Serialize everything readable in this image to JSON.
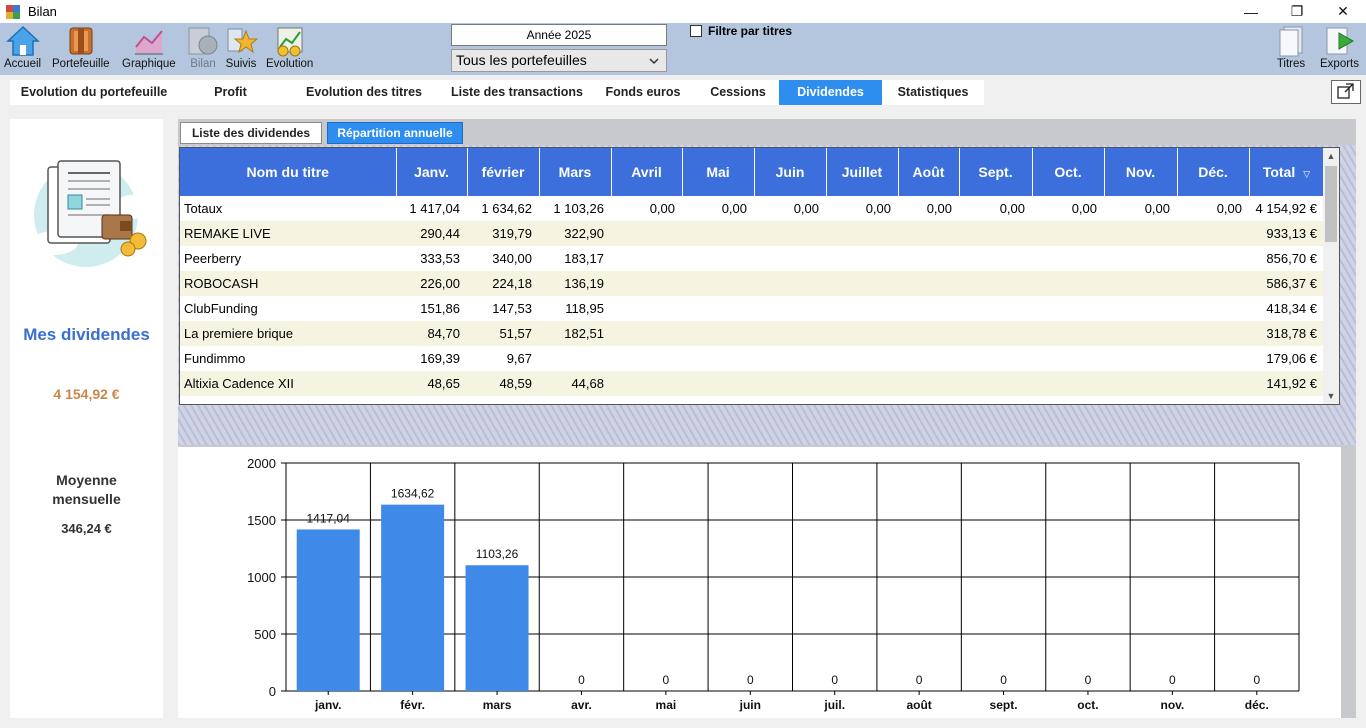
{
  "window": {
    "title": "Bilan",
    "minimize": "—",
    "maximize": "❐",
    "close": "✕"
  },
  "toolbar": {
    "buttons": [
      {
        "label": "Accueil"
      },
      {
        "label": "Portefeuille"
      },
      {
        "label": "Graphique"
      },
      {
        "label": "Bilan",
        "disabled": true
      },
      {
        "label": "Suivis"
      },
      {
        "label": "Evolution"
      },
      {
        "label": "Titres"
      },
      {
        "label": "Exports"
      }
    ],
    "year": "Année 2025",
    "portfolio_select": "Tous les portefeuilles",
    "filter_label": "Filtre par titres"
  },
  "tabs": [
    "Evolution du portefeuille",
    "Profit",
    "Evolution des titres",
    "Liste des transactions",
    "Fonds euros",
    "Cessions",
    "Dividendes",
    "Statistiques"
  ],
  "active_tab": "Dividendes",
  "subtabs": {
    "list": "Liste des dividendes",
    "annual": "Répartition annuelle"
  },
  "left": {
    "title": "Mes dividendes",
    "total": "4 154,92 €",
    "avg_label": "Moyenne mensuelle",
    "avg_value": "346,24 €"
  },
  "table": {
    "columns": [
      "Nom du titre",
      "Janv.",
      "février",
      "Mars",
      "Avril",
      "Mai",
      "Juin",
      "Juillet",
      "Août",
      "Sept.",
      "Oct.",
      "Nov.",
      "Déc.",
      "Total"
    ],
    "sort_indicator": "▽",
    "rows": [
      [
        "Totaux",
        "1 417,04",
        "1 634,62",
        "1 103,26",
        "0,00",
        "0,00",
        "0,00",
        "0,00",
        "0,00",
        "0,00",
        "0,00",
        "0,00",
        "0,00",
        "4 154,92 €"
      ],
      [
        "REMAKE LIVE",
        "290,44",
        "319,79",
        "322,90",
        "",
        "",
        "",
        "",
        "",
        "",
        "",
        "",
        "",
        "933,13 €"
      ],
      [
        "Peerberry",
        "333,53",
        "340,00",
        "183,17",
        "",
        "",
        "",
        "",
        "",
        "",
        "",
        "",
        "",
        "856,70 €"
      ],
      [
        "ROBOCASH",
        "226,00",
        "224,18",
        "136,19",
        "",
        "",
        "",
        "",
        "",
        "",
        "",
        "",
        "",
        "586,37 €"
      ],
      [
        "ClubFunding",
        "151,86",
        "147,53",
        "118,95",
        "",
        "",
        "",
        "",
        "",
        "",
        "",
        "",
        "",
        "418,34 €"
      ],
      [
        "La premiere brique",
        "84,70",
        "51,57",
        "182,51",
        "",
        "",
        "",
        "",
        "",
        "",
        "",
        "",
        "",
        "318,78 €"
      ],
      [
        "Fundimmo",
        "169,39",
        "9,67",
        "",
        "",
        "",
        "",
        "",
        "",
        "",
        "",
        "",
        "",
        "179,06 €"
      ],
      [
        "Altixia Cadence XII",
        "48,65",
        "48,59",
        "44,68",
        "",
        "",
        "",
        "",
        "",
        "",
        "",
        "",
        "",
        "141,92 €"
      ]
    ]
  },
  "chart_data": {
    "type": "bar",
    "categories": [
      "janv.",
      "févr.",
      "mars",
      "avr.",
      "mai",
      "juin",
      "juil.",
      "août",
      "sept.",
      "oct.",
      "nov.",
      "déc."
    ],
    "values": [
      1417.04,
      1634.62,
      1103.26,
      0,
      0,
      0,
      0,
      0,
      0,
      0,
      0,
      0
    ],
    "labels": [
      "1417,04",
      "1634,62",
      "1103,26",
      "0",
      "0",
      "0",
      "0",
      "0",
      "0",
      "0",
      "0",
      "0"
    ],
    "ylim": [
      0,
      2000
    ],
    "yticks": [
      0,
      500,
      1000,
      1500,
      2000
    ],
    "grid": true,
    "bar_color": "#3f8ae9"
  }
}
